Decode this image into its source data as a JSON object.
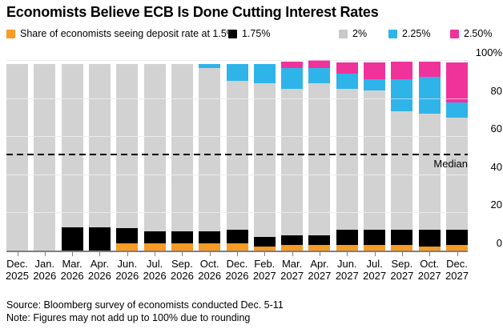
{
  "title": "Economists Believe ECB Is Done Cutting Interest Rates",
  "legend": [
    {
      "label": "Share of economists seeing deposit rate at 1.5%",
      "color": "#f79b24"
    },
    {
      "label": "1.75%",
      "color": "#000000"
    },
    {
      "label": "2%",
      "color": "#c9c9c9"
    },
    {
      "label": "2.25%",
      "color": "#2fb4e9"
    },
    {
      "label": "2.50%",
      "color": "#f0329b"
    }
  ],
  "chart_data": {
    "type": "bar",
    "stacked": true,
    "unit": "%",
    "grid": true,
    "legend_position": "top",
    "categories": [
      "Dec. 2025",
      "Jan. 2026",
      "Mar. 2026",
      "Apr. 2026",
      "Jun. 2026",
      "Jul. 2026",
      "Sep. 2026",
      "Oct. 2026",
      "Dec. 2026",
      "Feb. 2027",
      "Mar. 2027",
      "Apr. 2027",
      "Jun. 2027",
      "Jul. 2027",
      "Sep. 2027",
      "Oct. 2027",
      "Dec. 2027"
    ],
    "series": [
      {
        "name": "1.5%",
        "color": "#f79b24",
        "values": [
          0,
          0,
          0,
          0,
          4,
          4,
          4,
          4,
          4,
          2,
          3,
          3,
          3,
          3,
          3,
          2,
          3
        ]
      },
      {
        "name": "1.75%",
        "color": "#000000",
        "values": [
          0,
          0,
          12,
          12,
          8,
          6,
          6,
          6,
          7,
          5,
          5,
          5,
          8,
          8,
          8,
          9,
          8
        ]
      },
      {
        "name": "2%",
        "color": "#d2d2d2",
        "values": [
          98,
          98,
          86,
          86,
          86,
          88,
          88,
          86,
          78,
          81,
          77,
          80,
          74,
          73,
          62,
          61,
          59
        ]
      },
      {
        "name": "2.25%",
        "color": "#2fb4e9",
        "values": [
          0,
          0,
          0,
          0,
          0,
          0,
          0,
          2,
          9,
          10,
          11,
          8,
          8,
          6,
          17,
          19,
          8
        ]
      },
      {
        "name": "2.50%",
        "color": "#f0329b",
        "values": [
          0,
          0,
          0,
          0,
          0,
          0,
          0,
          0,
          0,
          0,
          3,
          4,
          6,
          9,
          9,
          8,
          21
        ]
      }
    ],
    "ylim": [
      0,
      100
    ],
    "yticks": [
      0,
      20,
      40,
      60,
      80,
      100
    ],
    "ytick_labels": [
      "0",
      "20",
      "40",
      "60",
      "80",
      "100%"
    ],
    "median_line": {
      "label": "Median",
      "value": 50
    }
  },
  "footer": {
    "source": "Source: Bloomberg survey of economists conducted Dec. 5-11",
    "note": "Note: Figures may not add up to 100% due to rounding"
  }
}
